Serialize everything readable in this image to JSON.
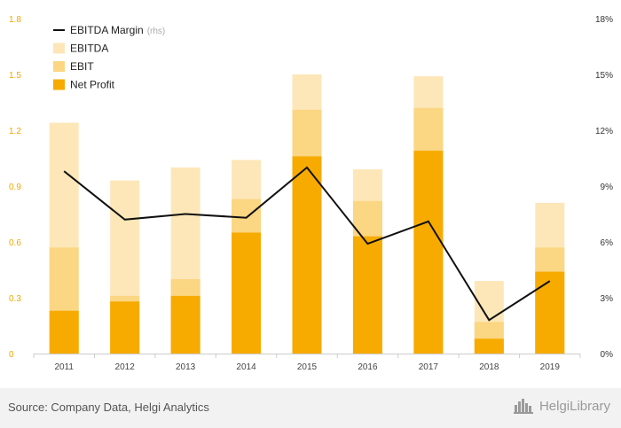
{
  "chart_data": {
    "type": "bar",
    "categories": [
      "2011",
      "2012",
      "2013",
      "2014",
      "2015",
      "2016",
      "2017",
      "2018",
      "2019"
    ],
    "series": [
      {
        "name": "EBITDA",
        "color": "#fde7b8",
        "values": [
          1.24,
          0.93,
          1.0,
          1.04,
          1.5,
          0.99,
          1.49,
          0.39,
          0.81
        ]
      },
      {
        "name": "EBIT",
        "color": "#fbd683",
        "values": [
          0.57,
          0.31,
          0.4,
          0.83,
          1.31,
          0.82,
          1.32,
          0.17,
          0.57
        ]
      },
      {
        "name": "Net Profit",
        "color": "#f7ab00",
        "values": [
          0.23,
          0.28,
          0.31,
          0.65,
          1.06,
          0.63,
          1.09,
          0.08,
          0.44
        ]
      },
      {
        "name": "EBITDA Margin",
        "axis": "right",
        "type": "line",
        "color": "#111111",
        "values": [
          9.8,
          7.2,
          7.5,
          7.3,
          10.0,
          5.9,
          7.1,
          1.8,
          3.9
        ]
      }
    ],
    "left_axis": {
      "ylim": [
        0,
        1.8
      ],
      "ticks": [
        "0",
        "0.3",
        "0.6",
        "0.9",
        "1.2",
        "1.5",
        "1.8"
      ],
      "tick_color": "#f0a800"
    },
    "right_axis": {
      "ylim": [
        0,
        18
      ],
      "ticks": [
        "0%",
        "3%",
        "6%",
        "9%",
        "12%",
        "15%",
        "18%"
      ]
    },
    "legend": {
      "position": "top-left",
      "items": [
        {
          "label": "EBITDA Margin",
          "suffix": "(rhs)",
          "kind": "line",
          "color": "#111111"
        },
        {
          "label": "EBITDA",
          "kind": "box",
          "color": "#fde7b8"
        },
        {
          "label": "EBIT",
          "kind": "box",
          "color": "#fbd683"
        },
        {
          "label": "Net Profit",
          "kind": "box",
          "color": "#f7ab00"
        }
      ]
    },
    "grid": false
  },
  "footer": {
    "source": "Source: Company Data, Helgi Analytics",
    "brand": "HelgiLibrary",
    "brand_icon": "city-skyline-icon"
  }
}
